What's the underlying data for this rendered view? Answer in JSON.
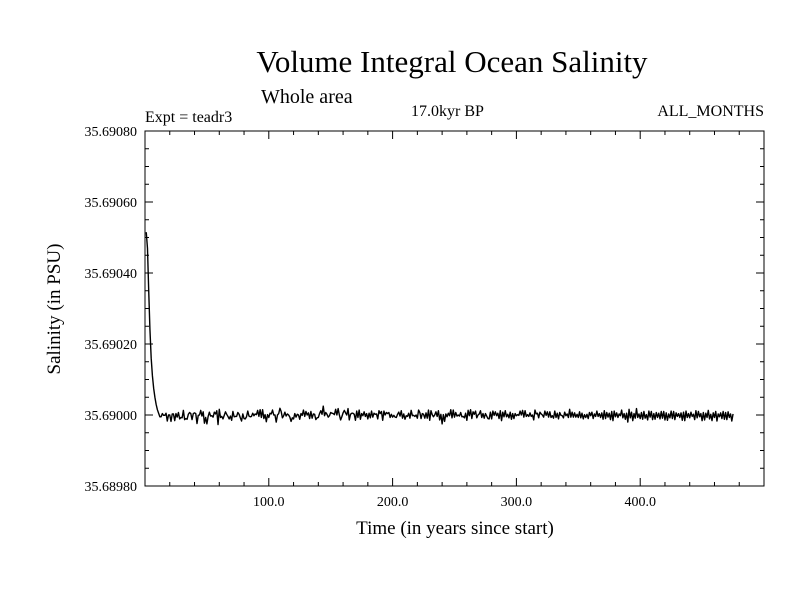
{
  "chart_data": {
    "type": "line",
    "title": "Volume Integral Ocean Salinity",
    "subtitle": "Whole area",
    "experiment": "Expt = teadr3",
    "period": "17.0kyr BP",
    "months": "ALL_MONTHS",
    "xlabel": "Time (in years since start)",
    "ylabel": "Salinity (in PSU)",
    "xlim": [
      0,
      500
    ],
    "ylim": [
      35.6898,
      35.6908
    ],
    "x_ticks": [
      100,
      200,
      300,
      400
    ],
    "x_tick_labels": [
      "100.0",
      "200.0",
      "300.0",
      "400.0"
    ],
    "y_ticks": [
      35.6898,
      35.69,
      35.6902,
      35.6904,
      35.6906,
      35.6908
    ],
    "y_tick_labels": [
      "35.68980",
      "35.69000",
      "35.69020",
      "35.69040",
      "35.69060",
      "35.69080"
    ],
    "series": [
      {
        "name": "Salinity",
        "x_start": 1,
        "x_step": 1,
        "values": [
          35.690515,
          35.69047,
          35.69035,
          35.69024,
          35.69016,
          35.69011,
          35.690075,
          35.69005,
          35.69003,
          35.690015,
          35.690005,
          35.689995,
          35.689995,
          35.690004,
          35.689999,
          35.689999,
          35.690005,
          35.689983,
          35.69,
          35.69,
          35.689982,
          35.690003,
          35.690003,
          35.689984,
          35.690004,
          35.689994,
          35.690007,
          35.689989,
          35.689993,
          35.689992,
          35.690013,
          35.689987,
          35.68999,
          35.689988,
          35.690002,
          35.690007,
          35.690004,
          35.689987,
          35.690004,
          35.690006,
          35.690004,
          35.689976,
          35.689999,
          35.69,
          35.690013,
          35.689997,
          35.690009,
          35.689977,
          35.689993,
          35.689975,
          35.689996,
          35.690008,
          35.689997,
          35.689998,
          35.689994,
          35.690008,
          35.690003,
          35.690012,
          35.689973,
          35.690016,
          35.689993,
          35.689996,
          35.689989,
          35.689999,
          35.690009,
          35.690002,
          35.689996,
          35.689989,
          35.689997,
          35.689985,
          35.69001,
          35.689995,
          35.689996,
          35.689996,
          35.690007,
          35.690002,
          35.689992,
          35.689983,
          35.690003,
          35.68999,
          35.689989,
          35.689995,
          35.690011,
          35.689997,
          35.689995,
          35.689996,
          35.690005,
          35.689998,
          35.690003,
          35.690001,
          35.690013,
          35.689996,
          35.690015,
          35.689993,
          35.690015,
          35.68999,
          35.690001,
          35.689981,
          35.690001,
          35.689993,
          35.690005,
          35.690003,
          35.690014,
          35.69,
          35.69,
          35.68998,
          35.69,
          35.690004,
          35.690019,
          35.69001,
          35.689992,
          35.689998,
          35.690008,
          35.689997,
          35.690003,
          35.69,
          35.689994,
          35.689982,
          35.689992,
          35.689989,
          35.690004,
          35.689994,
          35.690002,
          35.69,
          35.689988,
          35.690004,
          35.689999,
          35.690014,
          35.689996,
          35.69001,
          35.69,
          35.690006,
          35.68999,
          35.69001,
          35.689991,
          35.690003,
          35.690002,
          35.689987,
          35.689992,
          35.689993,
          35.690004,
          35.690012,
          35.690002,
          35.690025,
          35.689998,
          35.690007,
          35.690002,
          35.689994,
          35.689998,
          35.690007,
          35.690005,
          35.690004,
          35.690001,
          35.690016,
          35.69,
          35.690018,
          35.69,
          35.689986,
          35.689995,
          35.690006,
          35.690013,
          35.690006,
          35.69,
          35.690018,
          35.689986,
          35.690002,
          35.690005,
          35.690005,
          35.690002,
          35.689985,
          35.690011,
          35.689993,
          35.690014,
          35.689988,
          35.690004,
          35.689998,
          35.690009,
          35.689996,
          35.690004,
          35.689989,
          35.690005,
          35.689992,
          35.690011,
          35.689994,
          35.690005,
          35.690002,
          35.690003,
          35.689989,
          35.690012,
          35.690004,
          35.69001,
          35.689985,
          35.690011,
          35.69,
          35.690007,
          35.690004,
          35.690007,
          35.689993,
          35.690002,
          35.689994,
          35.689999,
          35.689994,
          35.689993,
          35.690002,
          35.690008,
          35.689997,
          35.690012,
          35.689991,
          35.690003,
          35.689988,
          35.689998,
          35.689996,
          35.690005,
          35.689991,
          35.690013,
          35.689998,
          35.689999,
          35.689996,
          35.69,
          35.689991,
          35.690014,
          35.690007,
          35.68999,
          35.690004,
          35.690002,
          35.689991,
          35.690006,
          35.689991,
          35.690014,
          35.689985,
          35.690012,
          35.690001,
          35.689995,
          35.69,
          35.690009,
          35.689996,
          35.690012,
          35.689986,
          35.690002,
          35.689975,
          35.690001,
          35.689982,
          35.690003,
          35.689995,
          35.690005,
          35.689998,
          35.690015,
          35.689992,
          35.690014,
          35.689994,
          35.690007,
          35.689997,
          35.69,
          35.689997,
          35.690007,
          35.689995,
          35.689996,
          35.689992,
          35.690005,
          35.689985,
          35.690013,
          35.689998,
          35.690015,
          35.68999,
          35.690009,
          35.690002,
          35.690011,
          35.689992,
          35.69,
          35.690003,
          35.690012,
          35.689993,
          35.690004,
          35.689991,
          35.690004,
          35.689997,
          35.68999,
          35.689989,
          35.690008,
          35.689989,
          35.690011,
          35.689999,
          35.690009,
          35.689998,
          35.690005,
          35.68999,
          35.690012,
          35.689984,
          35.690008,
          35.689995,
          35.690012,
          35.689995,
          35.690002,
          35.689992,
          35.690008,
          35.689988,
          35.690004,
          35.68999,
          35.690004,
          35.689998,
          35.690001,
          35.689999,
          35.690011,
          35.69,
          35.690013,
          35.689994,
          35.690012,
          35.689996,
          35.690001,
          35.689996,
          35.690006,
          35.689996,
          35.69,
          35.689986,
          35.690014,
          35.690003,
          35.690005,
          35.689992,
          35.690008,
          35.690003,
          35.69,
          35.689994,
          35.690011,
          35.689999,
          35.690009,
          35.689994,
          35.690009,
          35.689993,
          35.689998,
          35.689991,
          35.690011,
          35.689993,
          35.690005,
          35.689989,
          35.690007,
          35.689999,
          35.689998,
          35.689992,
          35.690008,
          35.689998,
          35.690003,
          35.689993,
          35.690016,
          35.689994,
          35.690008,
          35.689994,
          35.690006,
          35.689994,
          35.690002,
          35.689993,
          35.690009,
          35.689992,
          35.690005,
          35.689989,
          35.690001,
          35.689993,
          35.690002,
          35.68999,
          35.690007,
          35.689998,
          35.690008,
          35.68999,
          35.690003,
          35.689996,
          35.690011,
          35.689996,
          35.690004,
          35.689993,
          35.690006,
          35.689988,
          35.690012,
          35.68999,
          35.690007,
          35.689994,
          35.690005,
          35.689987,
          35.69001,
          35.689984,
          35.690011,
          35.689995,
          35.690006,
          35.689993,
          35.690003,
          35.689998,
          35.690014,
          35.689992,
          35.690004,
          35.689988,
          35.690005,
          35.68998,
          35.690016,
          35.689992,
          35.690008,
          35.689984,
          35.690004,
          35.689991,
          35.690018,
          35.689993,
          35.690003,
          35.68999,
          35.690007,
          35.689988,
          35.69001,
          35.689991,
          35.690001,
          35.689986,
          35.690011,
          35.689994,
          35.69001,
          35.689987,
          35.690004,
          35.689988,
          35.690007,
          35.689993,
          35.690005,
          35.689989,
          35.69001,
          35.689991,
          35.69001,
          35.689986,
          35.690006,
          35.689985,
          35.690003,
          35.689992,
          35.690011,
          35.68999,
          35.69001,
          35.689987,
          35.690006,
          35.689996,
          35.690004,
          35.689993,
          35.690006,
          35.689985,
          35.690008,
          35.689984,
          35.690011,
          35.689993,
          35.690004,
          35.689992,
          35.690008,
          35.689996,
          35.690002,
          35.689987,
          35.690012,
          35.689992,
          35.69001,
          35.689995,
          35.690004,
          35.689984,
          35.690007,
          35.689986,
          35.690005,
          35.689993,
          35.690013,
          35.689989,
          35.690002,
          35.689984,
          35.690006,
          35.689993,
          35.69001,
          35.689983,
          35.690003,
          35.689995,
          35.690006,
          35.68999,
          35.69001,
          35.689988,
          35.690007,
          35.689987,
          35.690009,
          35.689993,
          35.690003,
          35.689983,
          35.690003
        ]
      }
    ]
  }
}
